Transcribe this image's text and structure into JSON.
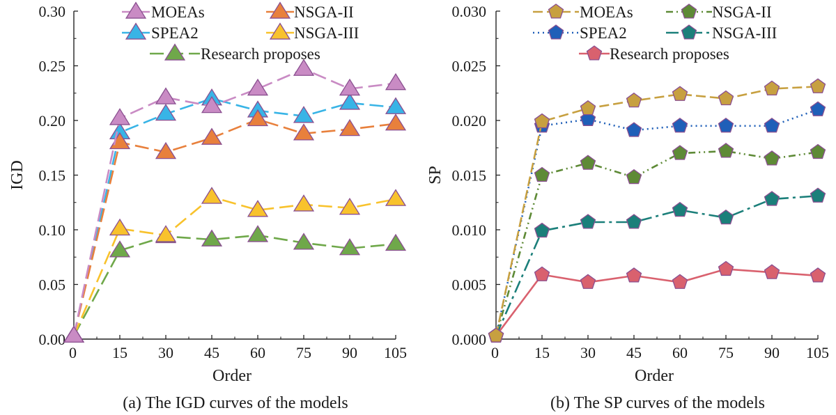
{
  "chart_data": [
    {
      "type": "line",
      "id": "igd",
      "caption": "(a) The IGD curves of the models",
      "xlabel": "Order",
      "ylabel": "IGD",
      "x": [
        0,
        15,
        30,
        45,
        60,
        75,
        90,
        105
      ],
      "xlim": [
        0,
        105
      ],
      "ylim": [
        0,
        0.3
      ],
      "xticks": [
        "0",
        "15",
        "30",
        "45",
        "60",
        "75",
        "90",
        "105"
      ],
      "yticks": [
        "0.00",
        "0.05",
        "0.10",
        "0.15",
        "0.20",
        "0.25",
        "0.30"
      ],
      "marker": "triangle",
      "grid": false,
      "legend_position": "top",
      "series": [
        {
          "name": "MOEAs",
          "color": "#c98bc4",
          "edge": "#8a4f90",
          "dash": "20,8",
          "values": [
            0.003,
            0.202,
            0.221,
            0.213,
            0.229,
            0.247,
            0.229,
            0.234
          ]
        },
        {
          "name": "NSGA-II",
          "color": "#e8803c",
          "edge": "#8a4f90",
          "dash": "20,8",
          "values": [
            0.003,
            0.18,
            0.171,
            0.184,
            0.201,
            0.188,
            0.192,
            0.197
          ]
        },
        {
          "name": "SPEA2",
          "color": "#38b4e6",
          "edge": "#8a4f90",
          "dash": "20,8",
          "values": [
            0.003,
            0.189,
            0.206,
            0.22,
            0.209,
            0.204,
            0.216,
            0.212
          ]
        },
        {
          "name": "NSGA-III",
          "color": "#f8c22c",
          "edge": "#8a4f90",
          "dash": "20,8",
          "values": [
            0.003,
            0.101,
            0.095,
            0.13,
            0.118,
            0.123,
            0.12,
            0.128
          ]
        },
        {
          "name": "Research proposes",
          "color": "#6fa84a",
          "edge": "#8a4f90",
          "dash": "20,8",
          "values": [
            0.003,
            0.081,
            0.094,
            0.091,
            0.095,
            0.088,
            0.083,
            0.087
          ]
        }
      ]
    },
    {
      "type": "line",
      "id": "sp",
      "caption": "(b) The SP curves of the models",
      "xlabel": "Order",
      "ylabel": "SP",
      "x": [
        0,
        15,
        30,
        45,
        60,
        75,
        90,
        105
      ],
      "xlim": [
        0,
        105
      ],
      "ylim": [
        0,
        0.03
      ],
      "xticks": [
        "0",
        "15",
        "30",
        "45",
        "60",
        "75",
        "90",
        "105"
      ],
      "yticks": [
        "0.000",
        "0.005",
        "0.010",
        "0.015",
        "0.020",
        "0.025",
        "0.030"
      ],
      "marker": "pentagon",
      "grid": false,
      "legend_position": "top",
      "series": [
        {
          "name": "MOEAs",
          "color": "#c7a040",
          "edge": "#8a4f90",
          "dash": "14,6",
          "values": [
            0.0003,
            0.0199,
            0.0211,
            0.0218,
            0.0224,
            0.022,
            0.0229,
            0.0231
          ]
        },
        {
          "name": "NSGA-II",
          "color": "#5e8a36",
          "edge": "#8a4f90",
          "dash": "10,5,2,5,2,5",
          "values": [
            0.0003,
            0.015,
            0.0161,
            0.0148,
            0.017,
            0.0172,
            0.0165,
            0.0171
          ]
        },
        {
          "name": "SPEA2",
          "color": "#1f5fb8",
          "edge": "#8a4f90",
          "dash": "2,5",
          "values": [
            0.0003,
            0.0195,
            0.0201,
            0.0191,
            0.0195,
            0.0195,
            0.0195,
            0.021
          ]
        },
        {
          "name": "NSGA-III",
          "color": "#1b7f7a",
          "edge": "#8a4f90",
          "dash": "18,6,4,6",
          "values": [
            0.0003,
            0.0099,
            0.0107,
            0.0107,
            0.0118,
            0.0111,
            0.0128,
            0.0131
          ]
        },
        {
          "name": "Research proposes",
          "color": "#d9616e",
          "edge": "#8a4f90",
          "dash": "",
          "values": [
            0.0003,
            0.0059,
            0.0052,
            0.0058,
            0.0052,
            0.0064,
            0.0061,
            0.0058
          ]
        }
      ]
    }
  ]
}
